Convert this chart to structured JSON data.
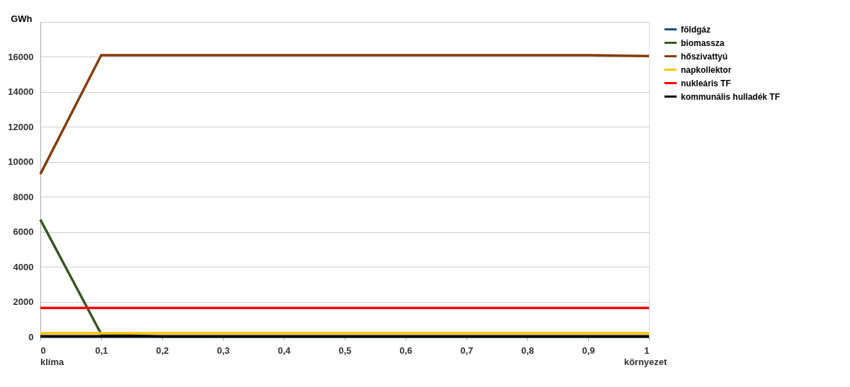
{
  "chart_data": {
    "type": "line",
    "ylabel": "GWh",
    "x": [
      0,
      0.1,
      0.2,
      0.3,
      0.4,
      0.5,
      0.6,
      0.7,
      0.8,
      0.9,
      1
    ],
    "series": [
      {
        "name": "földgáz",
        "color": "#1f4e79",
        "values": [
          0,
          0,
          0,
          0,
          0,
          0,
          0,
          0,
          0,
          0,
          0
        ]
      },
      {
        "name": "biomassza",
        "color": "#375623",
        "values": [
          6700,
          150,
          0,
          0,
          0,
          0,
          0,
          0,
          0,
          0,
          0
        ]
      },
      {
        "name": "hőszivattyú",
        "color": "#843c0c",
        "values": [
          9300,
          16100,
          16100,
          16100,
          16100,
          16100,
          16100,
          16100,
          16100,
          16100,
          16050
        ]
      },
      {
        "name": "napkollektor",
        "color": "#ffc000",
        "values": [
          200,
          200,
          200,
          200,
          200,
          200,
          200,
          200,
          200,
          200,
          200
        ]
      },
      {
        "name": "nukleáris TF",
        "color": "#ff0000",
        "values": [
          1650,
          1650,
          1650,
          1650,
          1650,
          1650,
          1650,
          1650,
          1650,
          1650,
          1650
        ]
      },
      {
        "name": "kommunális hulladék TF",
        "color": "#000000",
        "values": [
          30,
          30,
          30,
          30,
          30,
          30,
          30,
          30,
          30,
          30,
          30
        ]
      }
    ],
    "xlim": [
      0,
      1
    ],
    "xticks": [
      0,
      {
        "value": 0.1,
        "label": "0,1"
      },
      {
        "value": 0.2,
        "label": "0,2"
      },
      {
        "value": 0.3,
        "label": "0,3"
      },
      {
        "value": 0.4,
        "label": "0,4"
      },
      {
        "value": 0.5,
        "label": "0,5"
      },
      {
        "value": 0.6,
        "label": "0,6"
      },
      {
        "value": 0.7,
        "label": "0,7"
      },
      {
        "value": 0.8,
        "label": "0,8"
      },
      {
        "value": 0.9,
        "label": "0,9"
      },
      1
    ],
    "ylim": [
      0,
      18000
    ],
    "yticks": [
      0,
      2000,
      4000,
      6000,
      8000,
      10000,
      12000,
      14000,
      16000,
      {
        "value": 18000,
        "label": null
      }
    ],
    "annotations": [
      "klíma",
      "környezet"
    ],
    "grid": "y",
    "legend": "right",
    "line_style": "solid",
    "marker": "none"
  }
}
